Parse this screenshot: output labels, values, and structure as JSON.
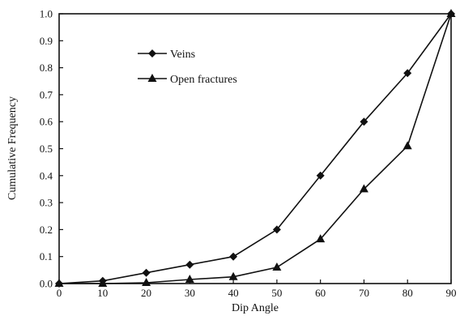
{
  "colors": {
    "ink": "#111111",
    "background": "#ffffff"
  },
  "chart_data": {
    "type": "line",
    "title": "",
    "xlabel": "Dip Angle",
    "ylabel": "Cumulative Frequency",
    "xlim": [
      0,
      90
    ],
    "ylim": [
      0,
      1.0
    ],
    "x_ticks": [
      0,
      10,
      20,
      30,
      40,
      50,
      60,
      70,
      80,
      90
    ],
    "y_ticks": [
      0.0,
      0.1,
      0.2,
      0.3,
      0.4,
      0.5,
      0.6,
      0.7,
      0.8,
      0.9,
      1.0
    ],
    "x_tick_labels": [
      "0",
      "10",
      "20",
      "30",
      "40",
      "50",
      "60",
      "70",
      "80",
      "90"
    ],
    "y_tick_labels": [
      "0.0",
      "0.1",
      "0.2",
      "0.3",
      "0.4",
      "0.5",
      "0.6",
      "0.7",
      "0.8",
      "0.9",
      "1.0"
    ],
    "grid": false,
    "legend_position": "upper-left inside",
    "x": [
      0,
      10,
      20,
      30,
      40,
      50,
      60,
      70,
      80,
      90
    ],
    "series": [
      {
        "name": "Veins",
        "marker": "diamond",
        "values": [
          0.0,
          0.01,
          0.04,
          0.07,
          0.1,
          0.2,
          0.4,
          0.6,
          0.78,
          1.0
        ]
      },
      {
        "name": "Open fractures",
        "marker": "triangle",
        "values": [
          0.0,
          0.0,
          0.003,
          0.015,
          0.025,
          0.06,
          0.165,
          0.35,
          0.51,
          1.0
        ]
      }
    ]
  }
}
